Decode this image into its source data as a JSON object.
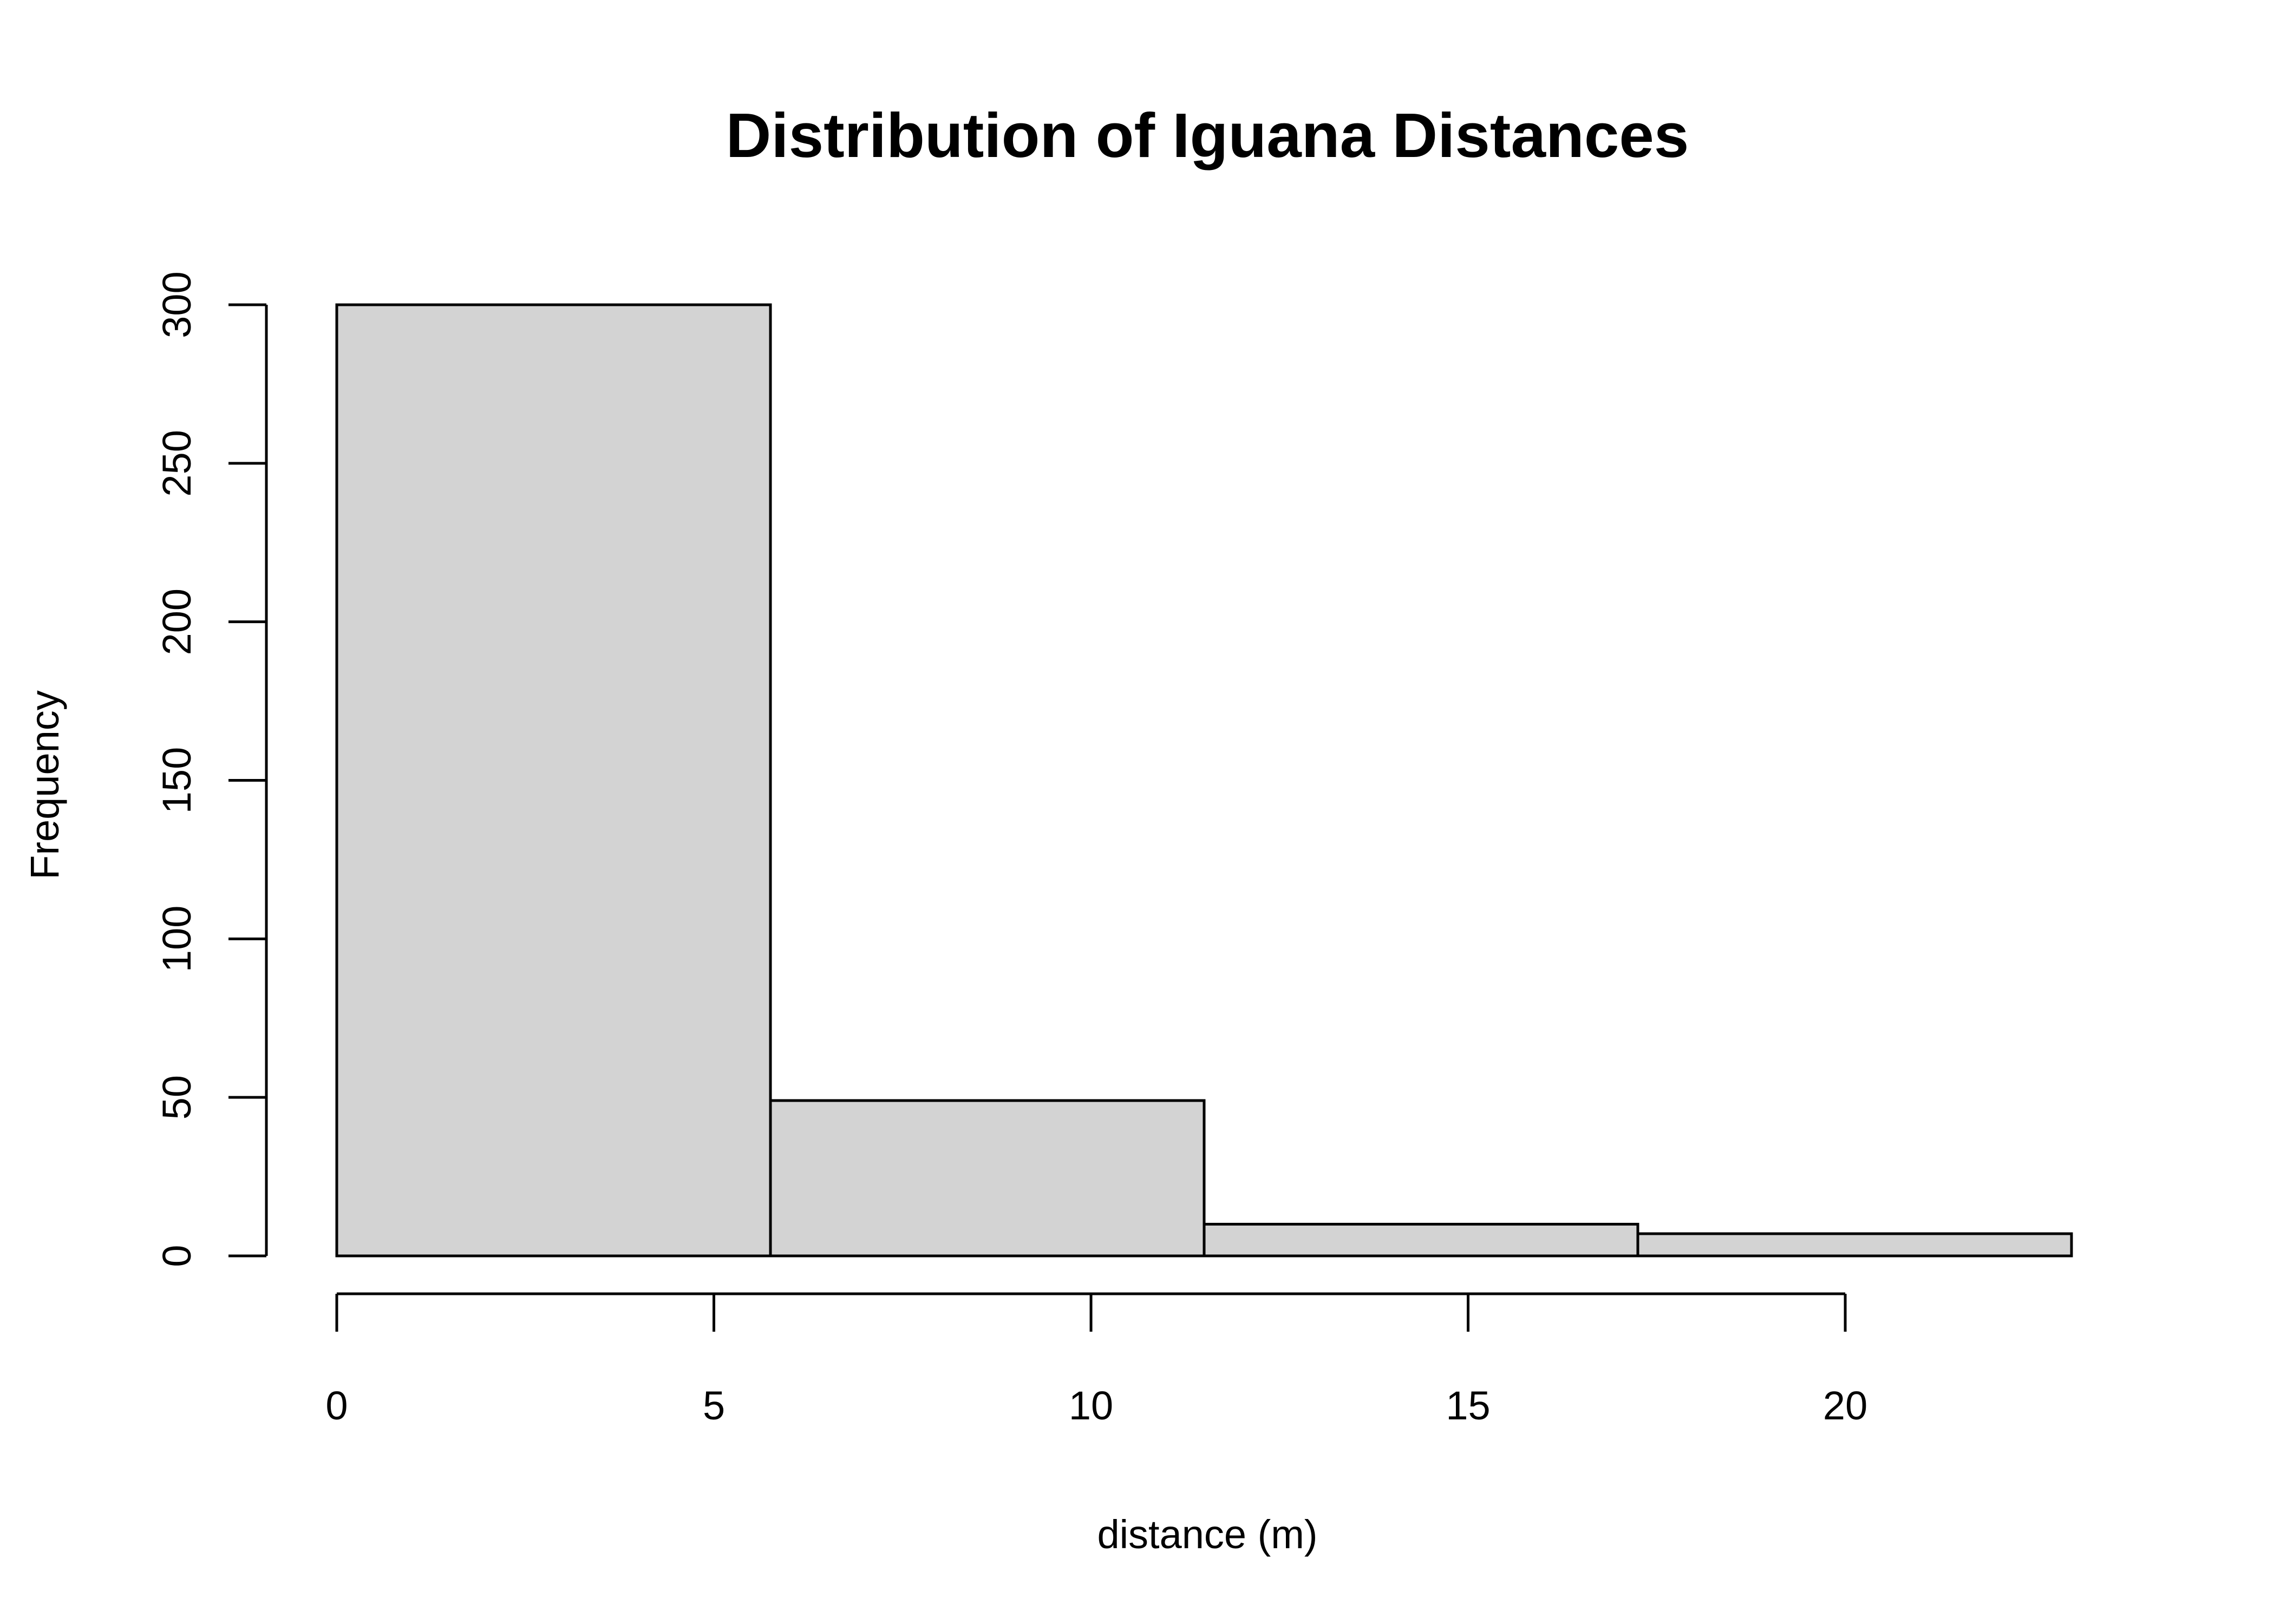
{
  "chart_data": {
    "type": "bar",
    "title": "Distribution of Iguana Distances",
    "xlabel": "distance (m)",
    "ylabel": "Frequency",
    "bins": [
      {
        "x0": 0,
        "x1": 5.75,
        "count": 300
      },
      {
        "x0": 5.75,
        "x1": 11.5,
        "count": 49
      },
      {
        "x0": 11.5,
        "x1": 17.25,
        "count": 10
      },
      {
        "x0": 17.25,
        "x1": 23,
        "count": 7
      }
    ],
    "xlim": [
      0,
      23
    ],
    "ylim": [
      0,
      300
    ],
    "x_ticks": [
      0,
      5,
      10,
      15,
      20
    ],
    "x_tick_labels": [
      "0",
      "5",
      "10",
      "15",
      "20"
    ],
    "y_ticks": [
      0,
      50,
      100,
      150,
      200,
      250,
      300
    ],
    "y_tick_labels": [
      "0",
      "50",
      "100",
      "150",
      "200",
      "250",
      "300"
    ],
    "grid": false,
    "colors": {
      "bar_fill": "#d3d3d3",
      "bar_stroke": "#000000"
    }
  }
}
